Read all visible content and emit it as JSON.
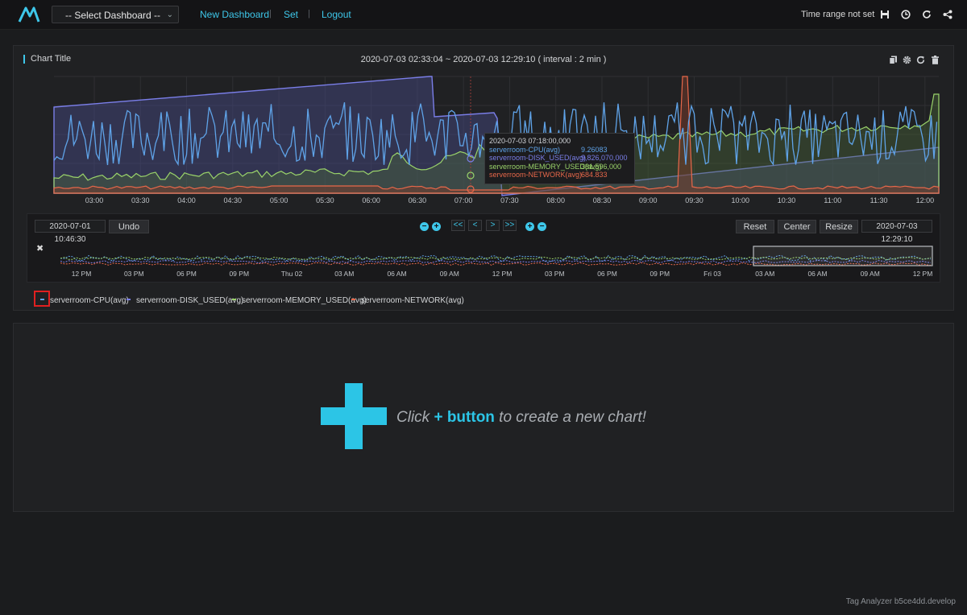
{
  "header": {
    "dashboard_select": "-- Select Dashboard --",
    "nav": [
      "New Dashboard",
      "Set",
      "Logout"
    ],
    "time_range": "Time range not set",
    "icons": [
      "save-icon",
      "clock-icon",
      "refresh-icon",
      "share-icon"
    ]
  },
  "panel": {
    "title": "Chart Title",
    "range": "2020-07-03 02:33:04 ~ 2020-07-03 12:29:10 ( interval : 2 min )",
    "icons": [
      "copy-icon",
      "gear-icon",
      "refresh-icon",
      "trash-icon"
    ]
  },
  "chart_data": {
    "type": "line",
    "x_ticks": [
      "03:00",
      "03:30",
      "04:00",
      "04:30",
      "05:00",
      "05:30",
      "06:00",
      "06:30",
      "07:00",
      "07:30",
      "08:00",
      "08:30",
      "09:00",
      "09:30",
      "10:00",
      "10:30",
      "11:00",
      "11:30",
      "12:00"
    ],
    "series": [
      {
        "name": "serverroom-CPU(avg)",
        "color": "#5fa3e8"
      },
      {
        "name": "serverroom-DISK_USED(avg)",
        "color": "#7a7ee8"
      },
      {
        "name": "serverroom-MEMORY_USED(avg)",
        "color": "#9ad36a"
      },
      {
        "name": "serverroom-NETWORK(avg)",
        "color": "#e8684a"
      }
    ]
  },
  "tooltip": {
    "time": "2020-07-03 07:18:00,000",
    "rows": [
      {
        "name": "serverroom-CPU(avg)",
        "value": "9.26083",
        "color": "#5fa3e8"
      },
      {
        "name": "serverroom-DISK_USED(avg)",
        "value": "9,826,070,000",
        "color": "#7a7ee8"
      },
      {
        "name": "serverroom-MEMORY_USED(avg)",
        "value": "381,596,000",
        "color": "#9ad36a"
      },
      {
        "name": "serverroom-NETWORK(avg)",
        "value": "684.833",
        "color": "#e8684a"
      }
    ]
  },
  "navigator": {
    "start": "2020-07-01 10:46:30",
    "end": "2020-07-03 12:29:10",
    "undo": "Undo",
    "zoom_out": "−",
    "zoom_in": "+",
    "first": "<<",
    "prev": "<",
    "next": ">",
    "last": ">>",
    "reset": "Reset",
    "center": "Center",
    "resize": "Resize",
    "close": "✖",
    "ticks": [
      "12 PM",
      "03 PM",
      "06 PM",
      "09 PM",
      "Thu 02",
      "03 AM",
      "06 AM",
      "09 AM",
      "12 PM",
      "03 PM",
      "06 PM",
      "09 PM",
      "Fri 03",
      "03 AM",
      "06 AM",
      "09 AM",
      "12 PM"
    ]
  },
  "legend": [
    {
      "name": "serverroom-CPU(avg)",
      "color": "#5fa3e8"
    },
    {
      "name": "serverroom-DISK_USED(avg)",
      "color": "#7a7ee8"
    },
    {
      "name": "serverroom-MEMORY_USED(avg)",
      "color": "#9ad36a"
    },
    {
      "name": "serverroom-NETWORK(avg)",
      "color": "#e8684a"
    }
  ],
  "empty": {
    "cta_before": "Click ",
    "cta_button": "+ button",
    "cta_after": " to create a new chart!"
  },
  "footer": "Tag Analyzer b5ce4dd.develop",
  "colors": {
    "accent": "#3ec7ea",
    "highlight": "#e02020"
  }
}
